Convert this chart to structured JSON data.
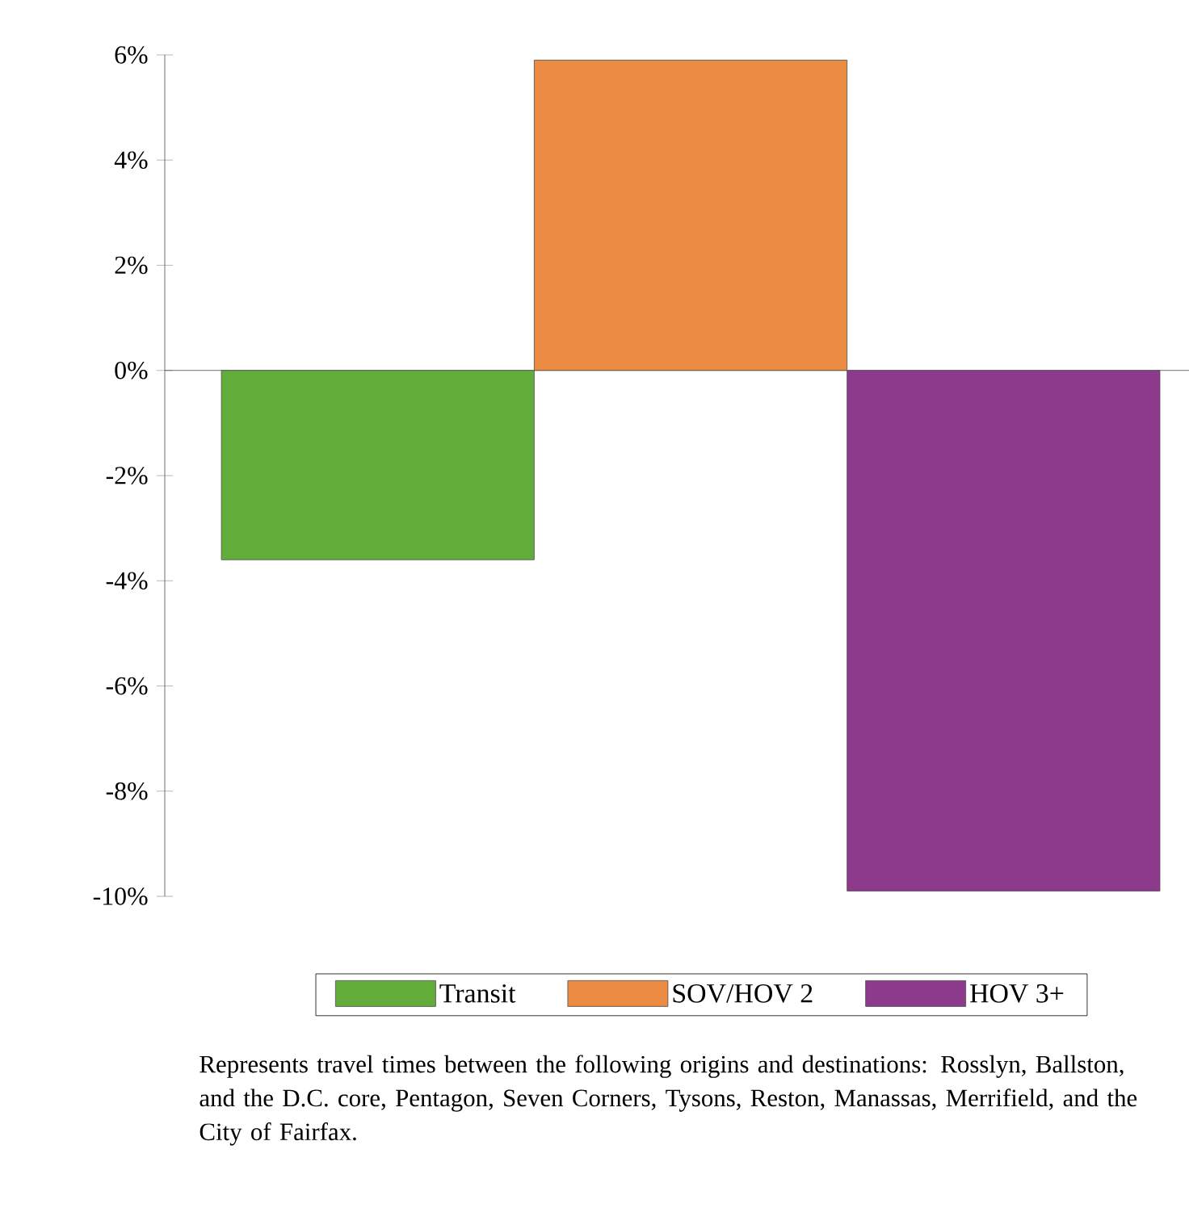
{
  "chart_data": {
    "type": "bar",
    "categories": [
      null
    ],
    "series": [
      {
        "name": "Transit",
        "color": "#62ad3a",
        "values": [
          -3.6
        ]
      },
      {
        "name": "SOV/HOV 2",
        "color": "#ec8c42",
        "values": [
          5.9
        ]
      },
      {
        "name": "HOV 3+",
        "color": "#8e3a8c",
        "values": [
          -9.9
        ]
      }
    ],
    "ylim": [
      -10,
      6
    ],
    "yticks": [
      {
        "value": 6,
        "label": "6%"
      },
      {
        "value": 4,
        "label": "4%"
      },
      {
        "value": 2,
        "label": "2%"
      },
      {
        "value": 0,
        "label": "0%"
      },
      {
        "value": -2,
        "label": "-2%"
      },
      {
        "value": -4,
        "label": "-4%"
      },
      {
        "value": -6,
        "label": "-6%"
      },
      {
        "value": -8,
        "label": "-8%"
      },
      {
        "value": -10,
        "label": "-10%"
      }
    ],
    "legend": "bottom",
    "annotations": [
      "Represents travel times between the following origins and destinations:  Rosslyn, Ballston, and the D.C. core, Pentagon, Seven Corners, Tysons, Reston, Manassas, Merrifield, and the City of Fairfax."
    ]
  }
}
